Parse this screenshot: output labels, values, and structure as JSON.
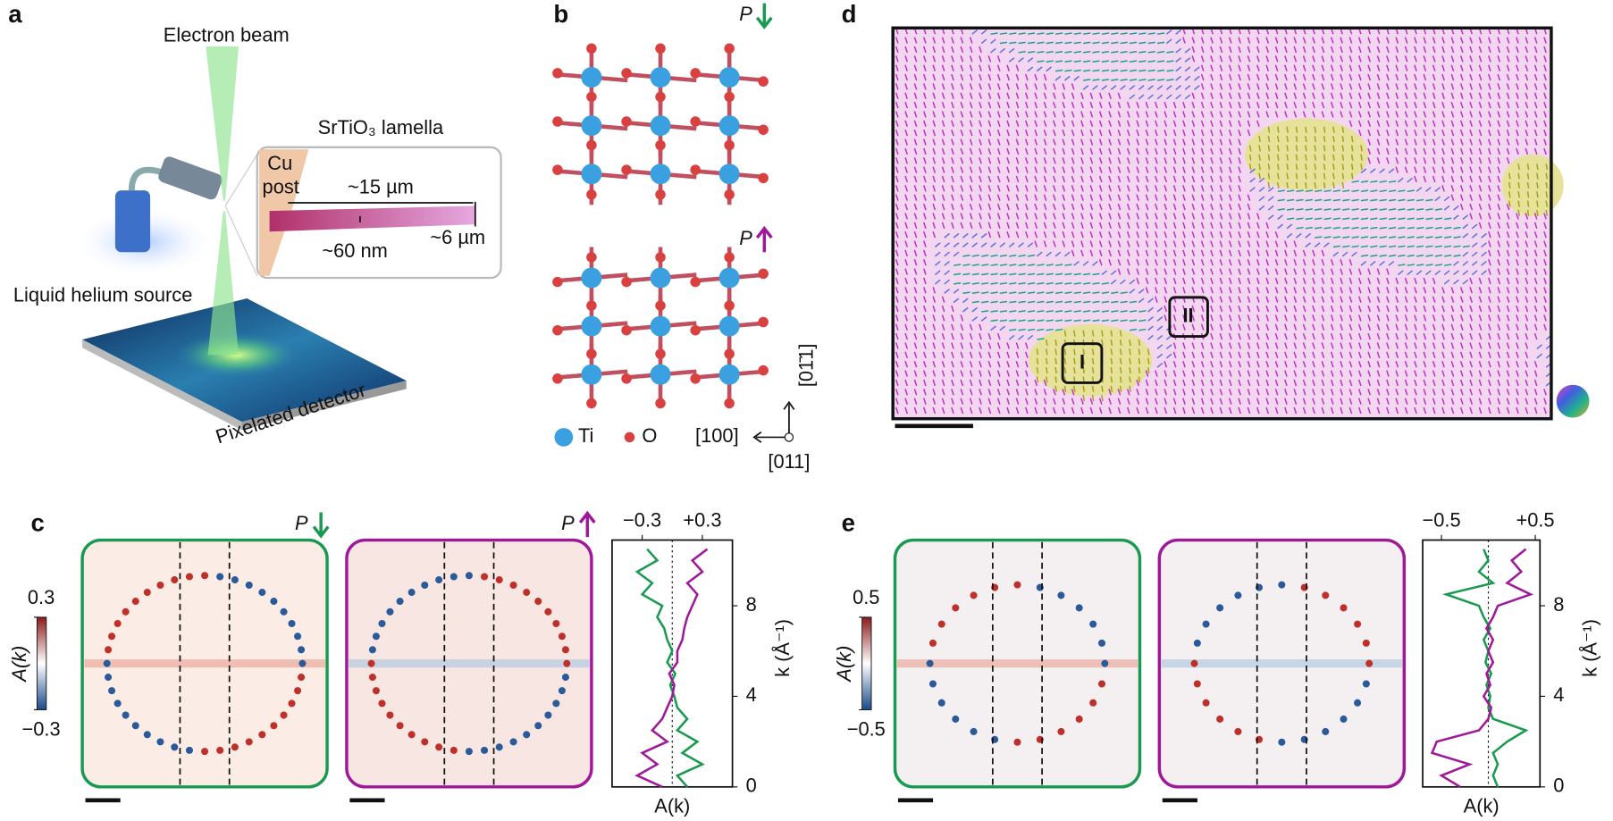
{
  "panels": {
    "a": {
      "label": "a",
      "beam": "Electron beam",
      "lamella": "SrTiO₃ lamella",
      "post_1": "Cu",
      "post_2": "post",
      "length": "~15 µm",
      "thickness": "~60 nm",
      "width": "~6 µm",
      "source": "Liquid helium source",
      "detector": "Pixelated detector"
    },
    "b": {
      "label": "b",
      "p_down": "P",
      "p_up": "P",
      "ti": "Ti",
      "o": "O",
      "axis_h": "[100]",
      "axis_v": "[01̄1]",
      "axis_out": "[011]"
    },
    "c": {
      "label": "c",
      "p_down": "P",
      "p_up": "P",
      "colorbar_label": "A(k)",
      "colorbar_ticks": [
        0.3,
        {
          "value": -0.3,
          "label": "−0.3"
        }
      ]
    },
    "d": {
      "label": "d",
      "box_1": "I",
      "box_2": "II"
    },
    "e": {
      "label": "e",
      "colorbar_label": "A(k)",
      "colorbar_ticks": [
        0.5,
        {
          "value": -0.5,
          "label": "−0.5"
        }
      ]
    }
  },
  "chart_data": [
    {
      "type": "line",
      "xlabel": "A(k)",
      "ylabel": "k (Å⁻¹)",
      "xlim": [
        -0.6,
        0.6
      ],
      "xticks": [
        {
          "value": -0.3,
          "label": "−0.3"
        },
        {
          "value": 0.3,
          "label": "+0.3"
        }
      ],
      "ylim": [
        0,
        10.9
      ],
      "yticks": [
        0,
        4,
        8
      ],
      "x": [
        0,
        0.5,
        1,
        1.5,
        2,
        2.5,
        3,
        3.5,
        4,
        4.5,
        5,
        5.5,
        6,
        6.5,
        7,
        7.5,
        8,
        8.5,
        9,
        9.5,
        10,
        10.5
      ],
      "series": [
        {
          "color": "#1a9a50",
          "values": [
            0.15,
            0.05,
            0.3,
            0.1,
            0.25,
            0.05,
            0.15,
            0.05,
            0.02,
            -0.02,
            0.03,
            -0.05,
            0.0,
            -0.05,
            -0.08,
            -0.15,
            -0.1,
            -0.3,
            -0.2,
            -0.35,
            -0.15,
            -0.25
          ]
        },
        {
          "color": "#a0189a",
          "values": [
            -0.1,
            -0.35,
            -0.15,
            -0.3,
            -0.05,
            -0.2,
            -0.1,
            -0.05,
            0.0,
            0.02,
            -0.03,
            0.05,
            0.05,
            0.1,
            0.12,
            0.15,
            0.2,
            0.25,
            0.15,
            0.3,
            0.2,
            0.35
          ]
        }
      ]
    },
    {
      "type": "line",
      "xlabel": "A(k)",
      "ylabel": "k (Å⁻¹)",
      "xlim": [
        -0.7,
        0.55
      ],
      "xticks": [
        {
          "value": -0.5,
          "label": "−0.5"
        },
        {
          "value": 0.5,
          "label": "+0.5"
        }
      ],
      "ylim": [
        0,
        10.9
      ],
      "yticks": [
        0,
        4,
        8
      ],
      "x": [
        0,
        0.5,
        1,
        1.5,
        2,
        2.5,
        3,
        3.5,
        4,
        4.5,
        5,
        5.5,
        6,
        6.5,
        7,
        7.5,
        8,
        8.5,
        9,
        9.5,
        10,
        10.5
      ],
      "series": [
        {
          "color": "#1a9a50",
          "values": [
            0.1,
            0.05,
            0.1,
            0.05,
            0.2,
            0.4,
            0.05,
            0.0,
            0.02,
            -0.02,
            0.03,
            -0.03,
            0.0,
            -0.05,
            0.02,
            -0.05,
            -0.1,
            -0.45,
            0.05,
            -0.1,
            0.0,
            -0.05
          ]
        },
        {
          "color": "#a0189a",
          "values": [
            -0.3,
            -0.5,
            -0.2,
            -0.6,
            -0.55,
            -0.1,
            0.0,
            0.03,
            -0.05,
            0.02,
            -0.02,
            0.05,
            0.0,
            0.05,
            -0.02,
            0.05,
            0.1,
            0.45,
            0.2,
            0.35,
            0.25,
            0.4
          ]
        }
      ]
    }
  ]
}
